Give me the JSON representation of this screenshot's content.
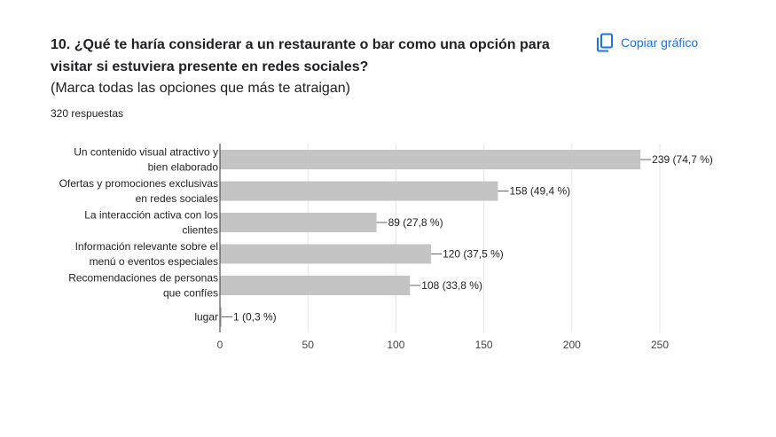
{
  "question": {
    "title": "10. ¿Qué te haría considerar a un restaurante o bar como una opción para visitar si estuviera presente en redes sociales?",
    "subtitle": "(Marca todas las opciones que más te atraigan)",
    "responses": "320 respuestas"
  },
  "toolbar": {
    "copy_label": "Copiar gráfico",
    "copy_icon": "copy-icon",
    "accent": "#1a73e8"
  },
  "chart_data": {
    "type": "bar",
    "orientation": "horizontal",
    "categories": [
      [
        "Un contenido visual atractivo y",
        "bien elaborado"
      ],
      [
        "Ofertas y promociones exclusivas",
        "en redes sociales"
      ],
      [
        "La interacción activa con los",
        "clientes"
      ],
      [
        "Información relevante sobre el",
        "menú o eventos especiales"
      ],
      [
        "Recomendaciones de personas",
        "que confíes"
      ],
      [
        "lugar"
      ]
    ],
    "values": [
      239,
      158,
      89,
      120,
      108,
      1
    ],
    "data_labels": [
      "239 (74,7 %)",
      "158 (49,4 %)",
      "89 (27,8 %)",
      "120 (37,5 %)",
      "108 (33,8 %)",
      "1 (0,3 %)"
    ],
    "xlim": [
      0,
      250
    ],
    "xticks": [
      0,
      50,
      100,
      150,
      200,
      250
    ],
    "bar_color": "#c4c4c4",
    "grid": true
  }
}
